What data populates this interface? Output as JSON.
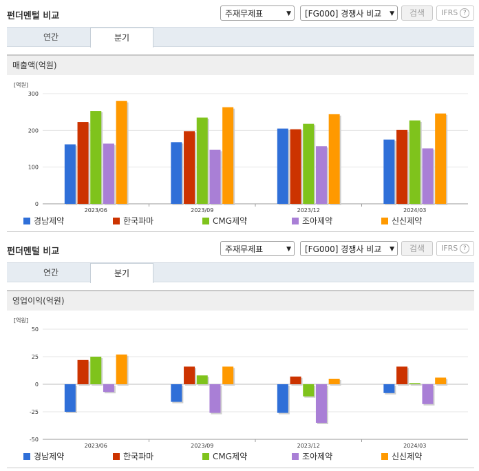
{
  "sections": [
    {
      "title": "펀더멘털 비교",
      "select_type": "주재무제표",
      "select_group": "[FG000] 경쟁사 비교",
      "search_label": "검색",
      "ifrs_label": "IFRS",
      "help_label": "?",
      "tabs": [
        {
          "label": "연간"
        },
        {
          "label": "분기"
        }
      ],
      "active_tab": 1,
      "panel_title": "매출액(억원)"
    },
    {
      "title": "펀더멘털 비교",
      "select_type": "주재무제표",
      "select_group": "[FG000] 경쟁사 비교",
      "search_label": "검색",
      "ifrs_label": "IFRS",
      "help_label": "?",
      "tabs": [
        {
          "label": "연간"
        },
        {
          "label": "분기"
        }
      ],
      "active_tab": 1,
      "panel_title": "영업이익(억원)"
    }
  ],
  "chart_data": [
    {
      "type": "bar",
      "title": "매출액(억원)",
      "unit_label": "[억원]",
      "categories": [
        "2023/06",
        "2023/09",
        "2023/12",
        "2024/03"
      ],
      "ylim": [
        0,
        300
      ],
      "yticks": [
        0,
        100,
        200,
        300
      ],
      "grid": true,
      "legend": "bottom",
      "series": [
        {
          "name": "경남제약",
          "color": "#2f6fd8",
          "values": [
            162,
            168,
            205,
            175
          ]
        },
        {
          "name": "한국파마",
          "color": "#cc3300",
          "values": [
            223,
            198,
            203,
            201
          ]
        },
        {
          "name": "CMG제약",
          "color": "#7fc31c",
          "values": [
            253,
            235,
            218,
            227
          ]
        },
        {
          "name": "조아제약",
          "color": "#a97fd6",
          "values": [
            164,
            147,
            157,
            151
          ]
        },
        {
          "name": "신신제약",
          "color": "#ff9900",
          "values": [
            280,
            263,
            244,
            246
          ]
        }
      ]
    },
    {
      "type": "bar",
      "title": "영업이익(억원)",
      "unit_label": "[억원]",
      "categories": [
        "2023/06",
        "2023/09",
        "2023/12",
        "2024/03"
      ],
      "ylim": [
        -50,
        50
      ],
      "yticks": [
        -50,
        -25,
        0,
        25,
        50
      ],
      "grid": true,
      "legend": "bottom",
      "series": [
        {
          "name": "경남제약",
          "color": "#2f6fd8",
          "values": [
            -25,
            -16,
            -26,
            -8
          ]
        },
        {
          "name": "한국파마",
          "color": "#cc3300",
          "values": [
            22,
            16,
            7,
            16
          ]
        },
        {
          "name": "CMG제약",
          "color": "#7fc31c",
          "values": [
            25,
            8,
            -11,
            1
          ]
        },
        {
          "name": "조아제약",
          "color": "#a97fd6",
          "values": [
            -7,
            -26,
            -35,
            -18
          ]
        },
        {
          "name": "신신제약",
          "color": "#ff9900",
          "values": [
            27,
            16,
            5,
            6
          ]
        }
      ]
    }
  ]
}
